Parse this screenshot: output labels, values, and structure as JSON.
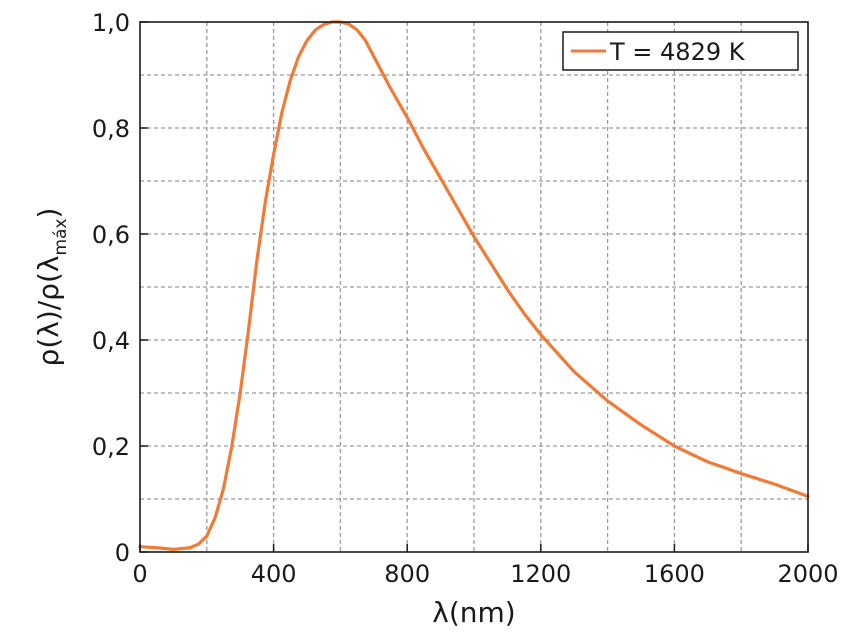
{
  "chart_data": {
    "type": "line",
    "title": "",
    "xlabel": "λ(nm)",
    "ylabel": "ρ(λ)/ρ(λ",
    "ylabel_sub": "máx",
    "ylabel_close": ")",
    "xlim": [
      0,
      2000
    ],
    "ylim": [
      0,
      1.0
    ],
    "x_ticks": [
      0,
      400,
      800,
      1200,
      1600,
      2000
    ],
    "x_tick_labels": [
      "0",
      "400",
      "800",
      "1200",
      "1600",
      "2000"
    ],
    "y_ticks": [
      0,
      0.2,
      0.4,
      0.6,
      0.8,
      1.0
    ],
    "y_tick_labels": [
      "0",
      "0,2",
      "0,4",
      "0,6",
      "0,8",
      "1,0"
    ],
    "grid": true,
    "legend_position": "top-right",
    "series": [
      {
        "name": "T = 4829 K",
        "color": "#f07a36",
        "x": [
          0,
          50,
          100,
          150,
          175,
          200,
          225,
          250,
          275,
          300,
          325,
          350,
          375,
          400,
          425,
          450,
          475,
          500,
          525,
          550,
          575,
          600,
          625,
          650,
          675,
          700,
          750,
          800,
          850,
          900,
          950,
          1000,
          1050,
          1100,
          1150,
          1200,
          1250,
          1300,
          1400,
          1500,
          1600,
          1700,
          1800,
          1900,
          2000
        ],
        "y": [
          0.01,
          0.008,
          0.005,
          0.008,
          0.015,
          0.03,
          0.065,
          0.12,
          0.2,
          0.3,
          0.42,
          0.55,
          0.66,
          0.75,
          0.83,
          0.89,
          0.935,
          0.965,
          0.985,
          0.995,
          1.0,
          1.0,
          0.996,
          0.985,
          0.965,
          0.935,
          0.875,
          0.82,
          0.76,
          0.705,
          0.65,
          0.595,
          0.545,
          0.495,
          0.45,
          0.41,
          0.375,
          0.34,
          0.285,
          0.24,
          0.2,
          0.17,
          0.148,
          0.128,
          0.105
        ]
      }
    ]
  }
}
